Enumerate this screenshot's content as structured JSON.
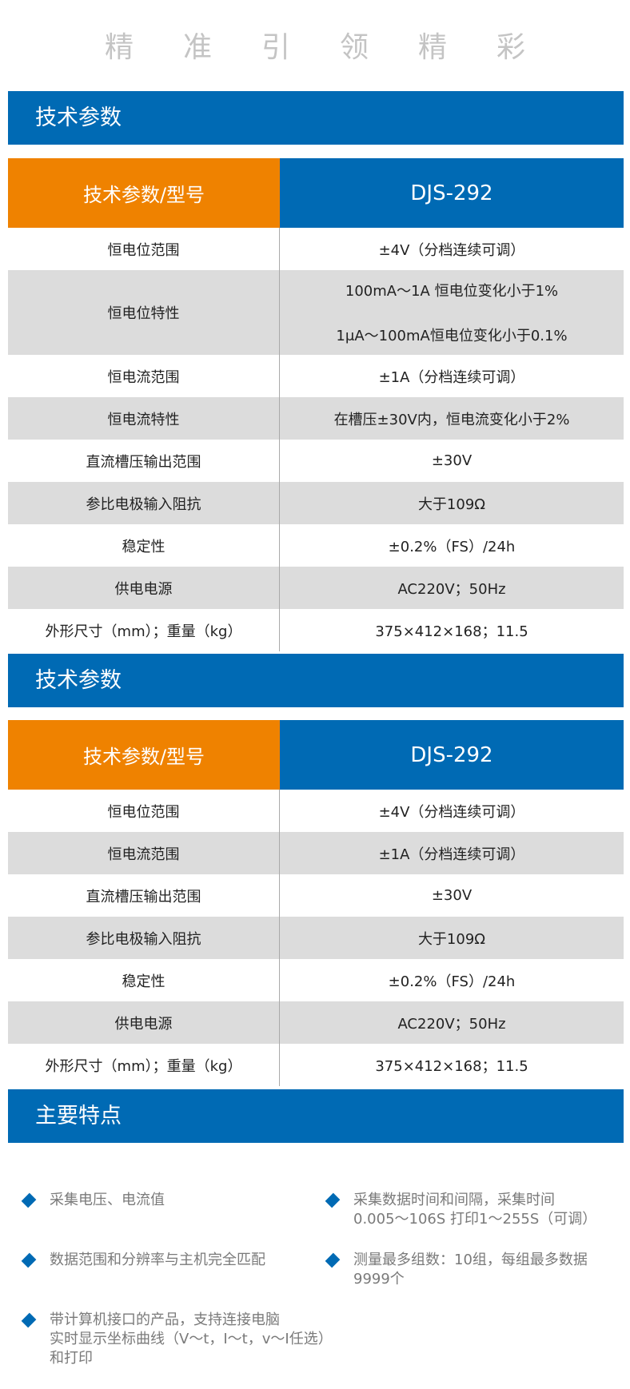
{
  "slogan": [
    "精",
    "准",
    "引",
    "领",
    "精",
    "彩"
  ],
  "sections": {
    "tech1": "技术参数",
    "tech2": "技术参数",
    "features": "主要特点"
  },
  "table1": {
    "header": {
      "label": "技术参数/型号",
      "model": "DJS-292"
    },
    "rows": [
      {
        "label": "恒电位范围",
        "values": [
          "±4V（分档连续可调）"
        ]
      },
      {
        "label": "恒电位特性",
        "values": [
          "100mA～1A 恒电位变化小于1%",
          "1μA～100mA恒电位变化小于0.1%"
        ]
      },
      {
        "label": "恒电流范围",
        "values": [
          "±1A（分档连续可调）"
        ]
      },
      {
        "label": "恒电流特性",
        "values": [
          "在槽压±30V内，恒电流变化小于2%"
        ]
      },
      {
        "label": "直流槽压输出范围",
        "values": [
          "±30V"
        ]
      },
      {
        "label": "参比电极输入阻抗",
        "values": [
          "大于109Ω"
        ]
      },
      {
        "label": "稳定性",
        "values": [
          "±0.2%（FS）/24h"
        ]
      },
      {
        "label": "供电电源",
        "values": [
          "AC220V；50Hz"
        ]
      },
      {
        "label": "外形尺寸（mm）；重量（kg）",
        "values": [
          "375×412×168；11.5"
        ]
      }
    ]
  },
  "table2": {
    "header": {
      "label": "技术参数/型号",
      "model": "DJS-292"
    },
    "rows": [
      {
        "label": "恒电位范围",
        "values": [
          "±4V（分档连续可调）"
        ]
      },
      {
        "label": "恒电流范围",
        "values": [
          "±1A（分档连续可调）"
        ]
      },
      {
        "label": "直流槽压输出范围",
        "values": [
          "±30V"
        ]
      },
      {
        "label": "参比电极输入阻抗",
        "values": [
          "大于109Ω"
        ]
      },
      {
        "label": "稳定性",
        "values": [
          "±0.2%（FS）/24h"
        ]
      },
      {
        "label": "供电电源",
        "values": [
          "AC220V；50Hz"
        ]
      },
      {
        "label": "外形尺寸（mm）；重量（kg）",
        "values": [
          "375×412×168；11.5"
        ]
      }
    ]
  },
  "features": [
    "采集电压、电流值",
    "采集数据时间和间隔，采集时间\n0.005～106S  打印1～255S（可调）",
    "数据范围和分辨率与主机完全匹配",
    "测量最多组数：10组，每组最多数据\n9999个",
    "带计算机接口的产品，支持连接电脑\n实时显示坐标曲线（V～t，I～t，v～I任选）\n和打印"
  ],
  "colors": {
    "blue": "#006ab4",
    "orange": "#ef8200",
    "gray": "#dcdcdc"
  }
}
